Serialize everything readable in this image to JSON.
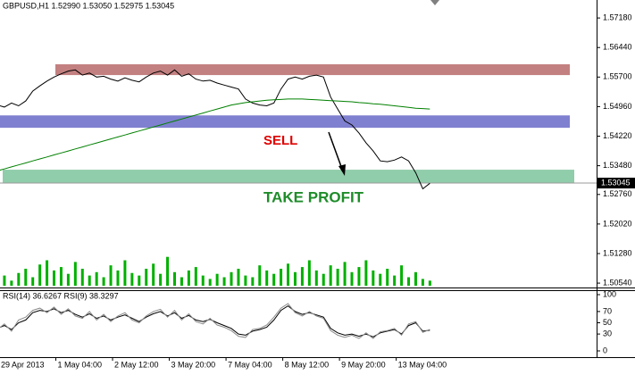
{
  "chart_data": [
    {
      "type": "line",
      "title": "GBPUSD,H1 1.52990 1.53050 1.52975 1.53045",
      "categories": [
        "29 Apr 2013",
        null,
        null,
        null,
        null,
        null,
        null,
        null,
        "1 May 04:00",
        null,
        null,
        null,
        null,
        null,
        null,
        null,
        "2 May 12:00",
        null,
        null,
        null,
        null,
        null,
        null,
        null,
        "3 May 20:00",
        null,
        null,
        null,
        null,
        null,
        null,
        null,
        "7 May 04:00",
        null,
        null,
        null,
        null,
        null,
        null,
        null,
        "8 May 12:00",
        null,
        null,
        null,
        null,
        null,
        null,
        null,
        "9 May 20:00",
        null,
        null,
        null,
        null,
        null,
        null,
        null,
        "13 May 04:00",
        null,
        null,
        null,
        null,
        null
      ],
      "series": [
        {
          "color": "#000000",
          "values": [
            1.55,
            1.5495,
            1.5505,
            1.5498,
            1.551,
            1.5535,
            1.5548,
            1.556,
            1.557,
            1.5578,
            1.5585,
            1.5588,
            1.5575,
            1.558,
            1.557,
            1.5572,
            1.5565,
            1.556,
            1.5568,
            1.5562,
            1.5558,
            1.557,
            1.558,
            1.5585,
            1.5575,
            1.5588,
            1.5572,
            1.5578,
            1.5565,
            1.556,
            1.5562,
            1.5555,
            1.555,
            1.5545,
            1.554,
            1.5515,
            1.5505,
            1.55,
            1.5498,
            1.5505,
            1.554,
            1.5565,
            1.557,
            1.5565,
            1.5572,
            1.5575,
            1.557,
            1.552,
            1.549,
            1.546,
            1.545,
            1.543,
            1.5405,
            1.5385,
            1.536,
            1.5358,
            1.5362,
            1.537,
            1.536,
            1.533,
            1.529,
            1.5304
          ]
        },
        {
          "color": "#008000",
          "values": [
            1.5335,
            1.534,
            1.5345,
            1.535,
            1.5355,
            1.536,
            1.5365,
            1.537,
            1.5375,
            1.538,
            1.5385,
            1.539,
            1.5395,
            1.54,
            1.5405,
            1.541,
            1.5415,
            1.542,
            1.5425,
            1.543,
            1.5435,
            1.544,
            1.5445,
            1.545,
            1.5455,
            1.546,
            1.5465,
            1.547,
            1.5475,
            1.548,
            1.5485,
            1.549,
            1.5495,
            1.55,
            1.5503,
            1.5506,
            1.5508,
            1.551,
            1.5512,
            1.5513,
            1.5514,
            1.5515,
            1.5515,
            1.5515,
            1.5514,
            1.5513,
            1.5512,
            1.5511,
            1.551,
            1.5509,
            1.5508,
            1.5506,
            1.5505,
            1.5503,
            1.5502,
            1.55,
            1.5498,
            1.5496,
            1.5494,
            1.5492,
            1.5491,
            1.549
          ]
        }
      ],
      "ylim": [
        1.5043,
        1.5763
      ],
      "yticks": [
        {
          "value": 1.5718,
          "label": "1.57180"
        },
        {
          "value": 1.5644,
          "label": "1.56440"
        },
        {
          "value": 1.557,
          "label": "1.55700"
        },
        {
          "value": 1.5496,
          "label": "1.54960"
        },
        {
          "value": 1.5422,
          "label": "1.54220"
        },
        {
          "value": 1.5348,
          "label": "1.53480"
        },
        {
          "value": 1.5276,
          "label": "1.52760"
        },
        {
          "value": 1.5202,
          "label": "1.52020"
        },
        {
          "value": 1.5128,
          "label": "1.51280"
        },
        {
          "value": 1.5054,
          "label": "1.50540"
        }
      ],
      "last_price": 1.53045,
      "zones": [
        {
          "color": "#b86a6a",
          "range": [
            1.5575,
            1.5602
          ]
        },
        {
          "color": "#6a6ac8",
          "range": [
            1.5443,
            1.5474
          ]
        },
        {
          "color": "#7cc49c",
          "range": [
            1.5305,
            1.5338
          ]
        }
      ],
      "annotations": [
        {
          "text": "SELL",
          "color": "#e00000"
        },
        {
          "text": "TAKE PROFIT",
          "color": "#1e8c2a"
        }
      ]
    },
    {
      "type": "bar",
      "color": "#00b000",
      "ylim": [
        0,
        40
      ],
      "values": [
        8,
        12,
        6,
        15,
        20,
        10,
        25,
        30,
        18,
        22,
        14,
        28,
        20,
        12,
        16,
        10,
        24,
        18,
        30,
        15,
        12,
        20,
        26,
        14,
        34,
        16,
        10,
        18,
        22,
        12,
        8,
        14,
        10,
        16,
        20,
        12,
        10,
        24,
        18,
        14,
        20,
        26,
        16,
        22,
        30,
        18,
        14,
        24,
        20,
        28,
        16,
        22,
        30,
        18,
        14,
        20,
        12,
        24,
        10,
        16,
        8,
        6
      ]
    },
    {
      "type": "line",
      "title": "RSI(14) 36.6267 RSI(9) 38.3297",
      "series": [
        {
          "color": "#000000",
          "values": [
            40,
            45,
            38,
            50,
            55,
            68,
            72,
            70,
            75,
            68,
            72,
            65,
            60,
            66,
            58,
            62,
            55,
            60,
            64,
            58,
            52,
            60,
            66,
            70,
            62,
            68,
            58,
            63,
            55,
            52,
            56,
            50,
            45,
            40,
            30,
            28,
            35,
            38,
            42,
            55,
            72,
            80,
            70,
            65,
            68,
            64,
            60,
            40,
            32,
            28,
            30,
            26,
            30,
            25,
            32,
            35,
            38,
            30,
            45,
            50,
            35,
            36.6267
          ]
        },
        {
          "color": "#8a8a8a",
          "values": [
            38,
            48,
            35,
            55,
            60,
            72,
            76,
            68,
            78,
            65,
            75,
            62,
            58,
            70,
            55,
            65,
            52,
            62,
            68,
            55,
            50,
            62,
            70,
            74,
            60,
            72,
            55,
            66,
            52,
            48,
            58,
            46,
            42,
            36,
            26,
            24,
            38,
            40,
            46,
            60,
            76,
            84,
            68,
            62,
            70,
            62,
            58,
            36,
            28,
            24,
            28,
            22,
            32,
            22,
            34,
            36,
            40,
            28,
            48,
            52,
            33,
            38.3297
          ]
        }
      ],
      "ylim": [
        0,
        100
      ],
      "yticks": [
        100,
        70,
        50,
        30,
        0
      ]
    }
  ]
}
